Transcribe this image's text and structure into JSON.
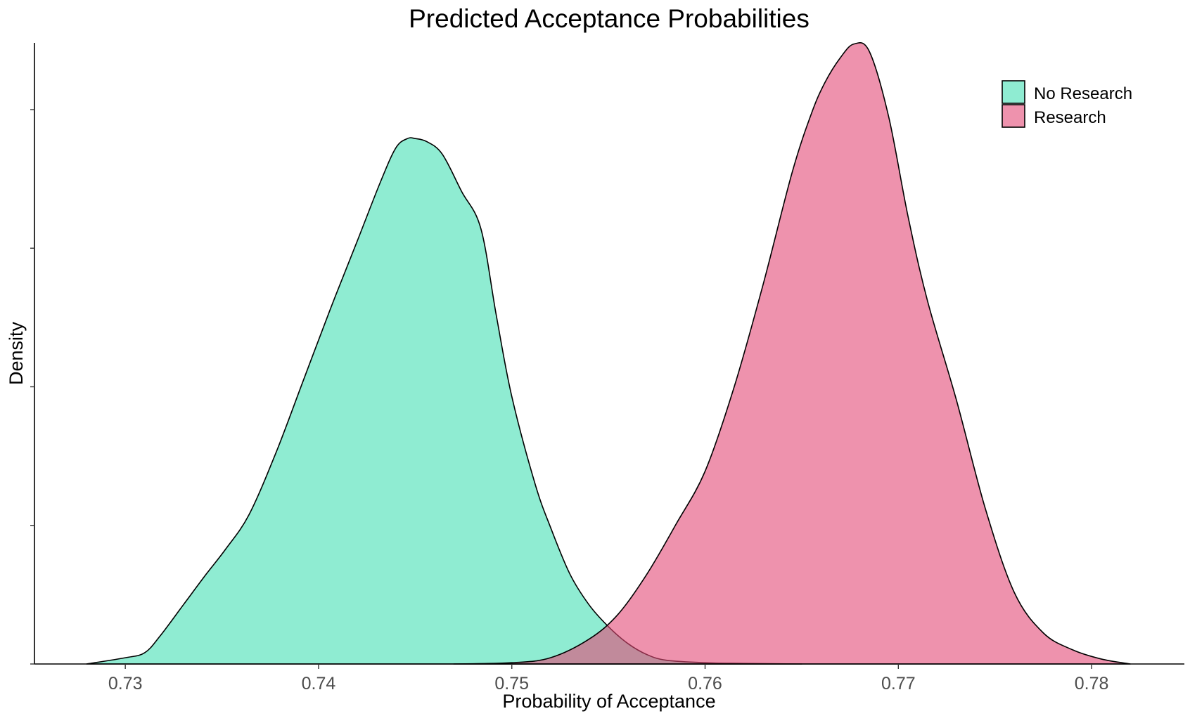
{
  "chart_data": {
    "type": "area",
    "title": "Predicted Acceptance Probabilities",
    "xlabel": "Probability of Acceptance",
    "ylabel": "Density",
    "xlim": [
      0.7253,
      0.7848
    ],
    "x_ticks": [
      "0.73",
      "0.74",
      "0.75",
      "0.76",
      "0.77",
      "0.78"
    ],
    "x_tick_values": [
      0.73,
      0.74,
      0.75,
      0.76,
      0.77,
      0.78
    ],
    "y_ticks_visible_labels": false,
    "y_tick_count": 5,
    "grid": false,
    "legend": {
      "position": "top-right",
      "entries": [
        "No Research",
        "Research"
      ]
    },
    "fill_opacity": 0.6,
    "series": [
      {
        "name": "No Research",
        "color": "#44e0b4",
        "x": [
          0.728,
          0.73,
          0.731,
          0.7318,
          0.733,
          0.7342,
          0.7352,
          0.7364,
          0.7378,
          0.7392,
          0.7406,
          0.742,
          0.7432,
          0.744,
          0.7446,
          0.745,
          0.7456,
          0.7464,
          0.7474,
          0.7484,
          0.7492,
          0.75,
          0.7512,
          0.752,
          0.753,
          0.754,
          0.755,
          0.756,
          0.757,
          0.758,
          0.76,
          0.762,
          0.765
        ],
        "density": [
          0.0,
          0.01,
          0.018,
          0.045,
          0.095,
          0.145,
          0.185,
          0.24,
          0.34,
          0.455,
          0.57,
          0.68,
          0.775,
          0.83,
          0.845,
          0.845,
          0.84,
          0.82,
          0.76,
          0.7,
          0.56,
          0.43,
          0.29,
          0.22,
          0.145,
          0.095,
          0.06,
          0.033,
          0.015,
          0.006,
          0.002,
          0.001,
          0.0
        ]
      },
      {
        "name": "Research",
        "color": "#e34a76",
        "x": [
          0.747,
          0.75,
          0.752,
          0.754,
          0.7555,
          0.757,
          0.7585,
          0.76,
          0.7615,
          0.763,
          0.7645,
          0.7655,
          0.7662,
          0.767,
          0.7677,
          0.7685,
          0.7695,
          0.7705,
          0.7715,
          0.773,
          0.7745,
          0.776,
          0.7775,
          0.779,
          0.7805,
          0.782
        ],
        "density": [
          0.0,
          0.002,
          0.01,
          0.04,
          0.08,
          0.145,
          0.225,
          0.31,
          0.445,
          0.61,
          0.79,
          0.885,
          0.935,
          0.975,
          0.997,
          0.985,
          0.88,
          0.72,
          0.585,
          0.425,
          0.25,
          0.115,
          0.05,
          0.023,
          0.008,
          0.0
        ]
      }
    ]
  }
}
